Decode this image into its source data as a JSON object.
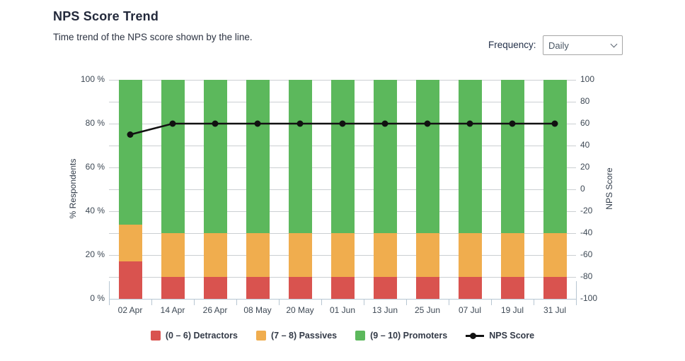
{
  "header": {
    "title": "NPS Score Trend",
    "subtitle": "Time trend of the NPS score shown by the line.",
    "frequency": {
      "label": "Frequency:",
      "selected": "Daily",
      "options": [
        "Daily"
      ]
    }
  },
  "chart_data": {
    "type": "bar",
    "subtype": "stacked-bar-with-line",
    "title": "NPS Score Trend",
    "categories": [
      "02 Apr",
      "14 Apr",
      "26 Apr",
      "08 May",
      "20 May",
      "01 Jun",
      "13 Jun",
      "25 Jun",
      "07 Jul",
      "19 Jul",
      "31 Jul"
    ],
    "series": [
      {
        "name": "(0 – 6) Detractors",
        "color": "#d9534f",
        "values": [
          17,
          10,
          10,
          10,
          10,
          10,
          10,
          10,
          10,
          10,
          10
        ]
      },
      {
        "name": "(7 – 8) Passives",
        "color": "#f0ad4e",
        "values": [
          17,
          20,
          20,
          20,
          20,
          20,
          20,
          20,
          20,
          20,
          20
        ]
      },
      {
        "name": "(9 – 10) Promoters",
        "color": "#5cb85c",
        "values": [
          66,
          70,
          70,
          70,
          70,
          70,
          70,
          70,
          70,
          70,
          70
        ]
      }
    ],
    "line_series": {
      "name": "NPS Score",
      "color": "#111111",
      "values": [
        50,
        60,
        60,
        60,
        60,
        60,
        60,
        60,
        60,
        60,
        60
      ],
      "axis": "right"
    },
    "left_axis": {
      "title": "% Respondents",
      "min": 0,
      "max": 100,
      "minor_step": 10,
      "tick_labels": [
        "0 %",
        "20 %",
        "40 %",
        "60 %",
        "80 %",
        "100 %"
      ],
      "tick_values": [
        0,
        20,
        40,
        60,
        80,
        100
      ]
    },
    "right_axis": {
      "title": "NPS Score",
      "min": -100,
      "max": 100,
      "tick_labels": [
        "-100",
        "-80",
        "-60",
        "-40",
        "-20",
        "0",
        "20",
        "40",
        "60",
        "80",
        "100"
      ],
      "tick_values": [
        -100,
        -80,
        -60,
        -40,
        -20,
        0,
        20,
        40,
        60,
        80,
        100
      ]
    },
    "legend_position": "bottom",
    "grid": "horizontal",
    "colors": {
      "gridline": "#cbcfd2",
      "axis_line": "#b7c6d2",
      "tick_text": "#3d4854"
    }
  }
}
